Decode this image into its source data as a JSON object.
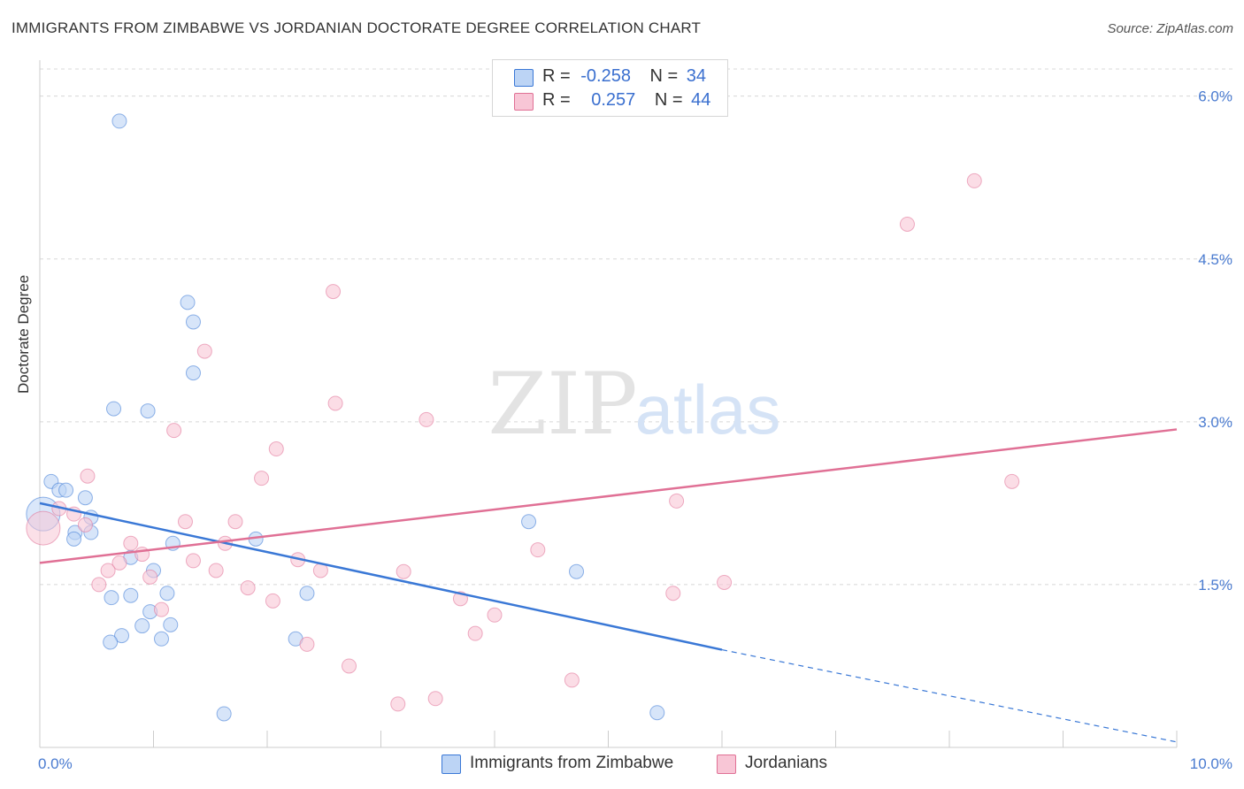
{
  "header": {
    "title": "IMMIGRANTS FROM ZIMBABWE VS JORDANIAN DOCTORATE DEGREE CORRELATION CHART",
    "source": "Source: ZipAtlas.com"
  },
  "watermark": {
    "zip": "ZIP",
    "atlas": "atlas"
  },
  "legend": {
    "rows": [
      {
        "r_label": "R =",
        "r_value": "-0.258",
        "n_label": "N =",
        "n_value": "34"
      },
      {
        "r_label": "R =",
        "r_value": "0.257",
        "n_label": "N =",
        "n_value": "44"
      }
    ]
  },
  "colors": {
    "blue": "#3a78d6",
    "blue_fill": "#bcd4f5",
    "pink": "#e07095",
    "pink_fill": "#f8c6d6",
    "grid": "#d8d8d8",
    "tick_text": "#4a7bd0"
  },
  "chart_data": {
    "type": "scatter",
    "title": "IMMIGRANTS FROM ZIMBABWE VS JORDANIAN DOCTORATE DEGREE CORRELATION CHART",
    "xlabel": "",
    "ylabel": "Doctorate Degree",
    "xlim": [
      0,
      10
    ],
    "ylim": [
      0,
      6.25
    ],
    "x_tick_labels": [
      "0.0%",
      "10.0%"
    ],
    "y_ticks": [
      1.5,
      3.0,
      4.5,
      6.0
    ],
    "y_tick_labels": [
      "1.5%",
      "3.0%",
      "4.5%",
      "6.0%"
    ],
    "grid": true,
    "legend_position": "bottom",
    "series": [
      {
        "name": "Immigrants from Zimbabwe",
        "color": "blue",
        "r": -0.258,
        "n": 34,
        "trend": {
          "x": [
            0.0,
            6.0
          ],
          "y": [
            2.25,
            0.9
          ],
          "dashed_to": [
            10.0,
            0.05
          ]
        },
        "points": [
          {
            "x": 0.03,
            "y": 2.15,
            "big": true
          },
          {
            "x": 0.1,
            "y": 2.45
          },
          {
            "x": 0.17,
            "y": 2.37
          },
          {
            "x": 0.23,
            "y": 2.37
          },
          {
            "x": 0.4,
            "y": 2.3
          },
          {
            "x": 0.45,
            "y": 2.12
          },
          {
            "x": 0.45,
            "y": 1.98
          },
          {
            "x": 0.31,
            "y": 1.98
          },
          {
            "x": 0.3,
            "y": 1.92
          },
          {
            "x": 0.65,
            "y": 3.12
          },
          {
            "x": 0.95,
            "y": 3.1
          },
          {
            "x": 0.7,
            "y": 5.77
          },
          {
            "x": 1.3,
            "y": 4.1
          },
          {
            "x": 1.35,
            "y": 3.92
          },
          {
            "x": 1.35,
            "y": 3.45
          },
          {
            "x": 1.17,
            "y": 1.88
          },
          {
            "x": 0.8,
            "y": 1.75
          },
          {
            "x": 1.0,
            "y": 1.63
          },
          {
            "x": 1.12,
            "y": 1.42
          },
          {
            "x": 0.8,
            "y": 1.4
          },
          {
            "x": 0.63,
            "y": 1.38
          },
          {
            "x": 0.97,
            "y": 1.25
          },
          {
            "x": 0.9,
            "y": 1.12
          },
          {
            "x": 1.15,
            "y": 1.13
          },
          {
            "x": 0.72,
            "y": 1.03
          },
          {
            "x": 0.62,
            "y": 0.97
          },
          {
            "x": 1.07,
            "y": 1.0
          },
          {
            "x": 1.9,
            "y": 1.92
          },
          {
            "x": 2.35,
            "y": 1.42
          },
          {
            "x": 2.25,
            "y": 1.0
          },
          {
            "x": 1.62,
            "y": 0.31
          },
          {
            "x": 4.3,
            "y": 2.08
          },
          {
            "x": 4.72,
            "y": 1.62
          },
          {
            "x": 5.43,
            "y": 0.32
          }
        ]
      },
      {
        "name": "Jordanians",
        "color": "pink",
        "r": 0.257,
        "n": 44,
        "trend": {
          "x": [
            0.0,
            10.0
          ],
          "y": [
            1.7,
            2.93
          ]
        },
        "points": [
          {
            "x": 0.03,
            "y": 2.02,
            "big": true
          },
          {
            "x": 0.17,
            "y": 2.2
          },
          {
            "x": 0.4,
            "y": 2.05
          },
          {
            "x": 0.3,
            "y": 2.15
          },
          {
            "x": 0.42,
            "y": 2.5
          },
          {
            "x": 0.8,
            "y": 1.88
          },
          {
            "x": 0.9,
            "y": 1.78
          },
          {
            "x": 0.7,
            "y": 1.7
          },
          {
            "x": 0.6,
            "y": 1.63
          },
          {
            "x": 0.52,
            "y": 1.5
          },
          {
            "x": 0.97,
            "y": 1.57
          },
          {
            "x": 1.07,
            "y": 1.27
          },
          {
            "x": 1.18,
            "y": 2.92
          },
          {
            "x": 1.28,
            "y": 2.08
          },
          {
            "x": 1.35,
            "y": 1.72
          },
          {
            "x": 1.45,
            "y": 3.65
          },
          {
            "x": 1.55,
            "y": 1.63
          },
          {
            "x": 1.63,
            "y": 1.88
          },
          {
            "x": 1.72,
            "y": 2.08
          },
          {
            "x": 1.83,
            "y": 1.47
          },
          {
            "x": 1.95,
            "y": 2.48
          },
          {
            "x": 2.05,
            "y": 1.35
          },
          {
            "x": 2.08,
            "y": 2.75
          },
          {
            "x": 2.27,
            "y": 1.73
          },
          {
            "x": 2.35,
            "y": 0.95
          },
          {
            "x": 2.47,
            "y": 1.63
          },
          {
            "x": 2.58,
            "y": 4.2
          },
          {
            "x": 2.6,
            "y": 3.17
          },
          {
            "x": 2.72,
            "y": 0.75
          },
          {
            "x": 3.15,
            "y": 0.4
          },
          {
            "x": 3.2,
            "y": 1.62
          },
          {
            "x": 3.4,
            "y": 3.02
          },
          {
            "x": 3.48,
            "y": 0.45
          },
          {
            "x": 3.7,
            "y": 1.37
          },
          {
            "x": 3.83,
            "y": 1.05
          },
          {
            "x": 4.0,
            "y": 1.22
          },
          {
            "x": 4.38,
            "y": 1.82
          },
          {
            "x": 4.68,
            "y": 0.62
          },
          {
            "x": 5.57,
            "y": 1.42
          },
          {
            "x": 5.6,
            "y": 2.27
          },
          {
            "x": 6.02,
            "y": 1.52
          },
          {
            "x": 7.63,
            "y": 4.82
          },
          {
            "x": 8.22,
            "y": 5.22
          },
          {
            "x": 8.55,
            "y": 2.45
          }
        ]
      }
    ]
  }
}
